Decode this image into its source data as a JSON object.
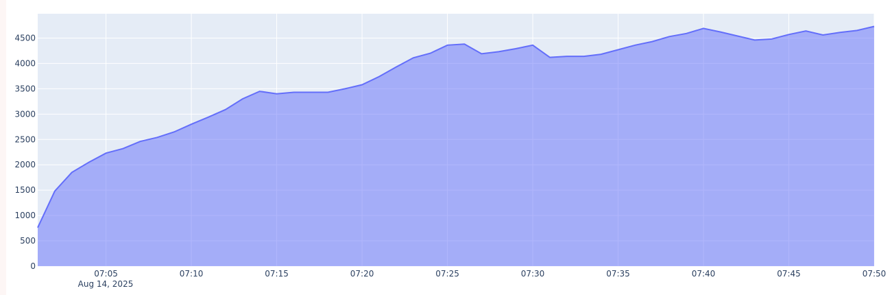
{
  "chart_data": {
    "type": "area",
    "title": "",
    "xlabel": "",
    "ylabel": "",
    "x_start": "2025-08-14 07:01",
    "x_step_minutes": 1,
    "x_tick_labels": [
      "07:05",
      "07:10",
      "07:15",
      "07:20",
      "07:25",
      "07:30",
      "07:35",
      "07:40",
      "07:45",
      "07:50"
    ],
    "x_date_label": "Aug 14, 2025",
    "y_tick_labels": [
      "0",
      "500",
      "1000",
      "1500",
      "2000",
      "2500",
      "3000",
      "3500",
      "4000",
      "4500"
    ],
    "ylim": [
      0,
      4980
    ],
    "grid": true,
    "colors": {
      "line": "#636efa",
      "fill": "rgba(99,110,250,0.5)",
      "plot_bg": "#e5ecf6",
      "grid": "#ffffff"
    },
    "values": [
      760,
      1480,
      1850,
      2050,
      2230,
      2320,
      2460,
      2540,
      2650,
      2800,
      2940,
      3090,
      3300,
      3450,
      3400,
      3430,
      3430,
      3430,
      3500,
      3580,
      3740,
      3930,
      4110,
      4200,
      4360,
      4380,
      4190,
      4230,
      4290,
      4360,
      4120,
      4140,
      4140,
      4180,
      4270,
      4360,
      4430,
      4530,
      4590,
      4690,
      4620,
      4540,
      4460,
      4480,
      4570,
      4640,
      4560,
      4610,
      4650,
      4730
    ]
  }
}
